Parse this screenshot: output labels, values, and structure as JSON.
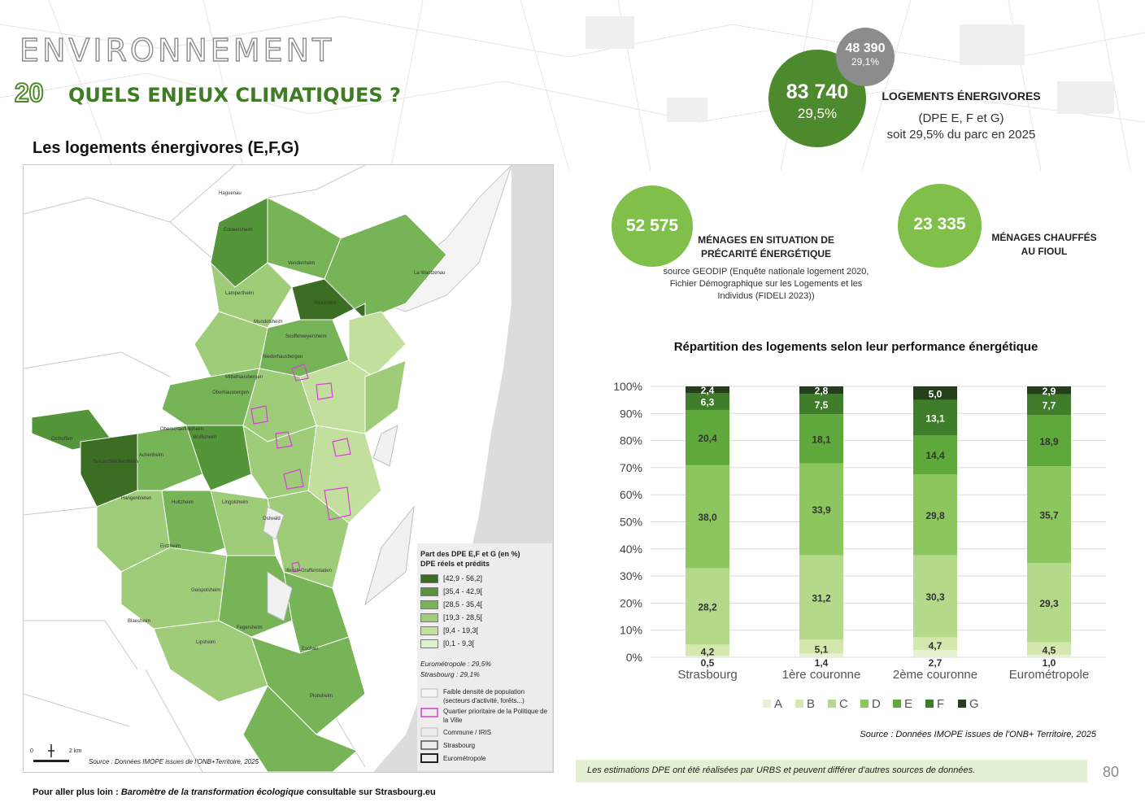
{
  "header": {
    "section_title": "ENVIRONNEMENT",
    "number": "20",
    "subtitle": "QUELS ENJEUX CLIMATIQUES ?"
  },
  "map": {
    "title": "Les logements énergivores (E,F,G)",
    "source": "Source : Données IMOPE issues de l'ONB+Territoire, 2025",
    "scale_label": "2 km",
    "scale_zero": "0",
    "legend": {
      "title": "Part des DPE E,F et G (en %)",
      "subtitle": "DPE réels et prédits",
      "classes": [
        {
          "label": "[42,9 - 56,2]",
          "color": "#3b6e22"
        },
        {
          "label": "[35,4 - 42,9[",
          "color": "#55953a"
        },
        {
          "label": "[28,5 - 35,4[",
          "color": "#76b457"
        },
        {
          "label": "[19,3 - 28,5[",
          "color": "#9fcc79"
        },
        {
          "label": "[9,4 - 19,3[",
          "color": "#c3df9e"
        },
        {
          "label": "[0,1 - 9,3[",
          "color": "#e3f0cc"
        }
      ],
      "eurometropole": "Eurométropole : 29,5%",
      "strasbourg": "Strasbourg : 29,1%",
      "items": [
        {
          "label": "Faible densité de population (secteurs d'activité, forêts...)"
        },
        {
          "label": "Quartier prioritaire de la Politique de la Ville"
        },
        {
          "label": "Commune / IRIS"
        },
        {
          "label": "Strasbourg"
        },
        {
          "label": "Eurométropole"
        }
      ]
    },
    "place_labels": [
      "Haguenau",
      "Eckwersheim",
      "Vendenheim",
      "La Wantzenau",
      "Lampertheim",
      "Reichstett",
      "Mundolsheim",
      "Souffelweyersheim",
      "Niederhausbergen",
      "Mittelhausbergen",
      "Oberhausbergen",
      "Oberschaeffolsheim",
      "Wolfisheim",
      "Ostwald",
      "Holtzheim",
      "Entzheim",
      "Geispolsheim",
      "Illkirch-Graffenstaden",
      "Blaesheim",
      "Lipsheim",
      "Fegersheim",
      "Eschau",
      "Plobsheim",
      "Hangenbieten",
      "Achenheim",
      "Breuschwickersheim",
      "Osthoffen",
      "Lingolsheim"
    ]
  },
  "kpis": {
    "main_value": "83 740",
    "main_pct": "29,5%",
    "secondary_value": "48 390",
    "secondary_pct": "29,1%",
    "main_label": "LOGEMENTS ÉNERGIVORES",
    "main_sub1": "(DPE E, F et G)",
    "main_sub2": "soit 29,5% du parc en 2025",
    "precarite_value": "52 575",
    "precarite_label": "MÉNAGES EN SITUATION DE PRÉCARITÉ ÉNERGÉTIQUE",
    "precarite_source": "source GEODIP (Enquête nationale logement 2020, Fichier Démographique sur les Logements et les Individus (FIDELI 2023))",
    "fioul_value": "23 335",
    "fioul_label": "MÉNAGES CHAUFFÉS AU FIOUL"
  },
  "chart_data": {
    "type": "bar",
    "stacked": true,
    "title": "Répartition des logements selon leur performance énergétique",
    "categories": [
      "Strasbourg",
      "1ère couronne",
      "2ème couronne",
      "Eurométropole"
    ],
    "series": [
      {
        "name": "A",
        "color": "#e6f2d4",
        "values": [
          0.5,
          1.4,
          2.7,
          1.0
        ]
      },
      {
        "name": "B",
        "color": "#d4e8ad",
        "values": [
          4.2,
          5.1,
          4.7,
          4.5
        ]
      },
      {
        "name": "C",
        "color": "#b5d98a",
        "values": [
          28.2,
          31.2,
          30.3,
          29.3
        ]
      },
      {
        "name": "D",
        "color": "#8cc65f",
        "values": [
          38.0,
          33.9,
          29.8,
          35.7
        ]
      },
      {
        "name": "E",
        "color": "#5fa83b",
        "values": [
          20.4,
          18.1,
          14.4,
          18.9
        ]
      },
      {
        "name": "F",
        "color": "#3f7d2a",
        "values": [
          6.3,
          7.5,
          13.1,
          7.7
        ]
      },
      {
        "name": "G",
        "color": "#23401b",
        "values": [
          2.4,
          2.8,
          5.0,
          2.9
        ]
      }
    ],
    "data_labels": {
      "A": [
        "0,5",
        "1,4",
        "2,7",
        "1,0"
      ],
      "B": [
        "4,2",
        "5,1",
        "4,7",
        "4,5"
      ],
      "C": [
        "28,2",
        "31,2",
        "30,3",
        "29,3"
      ],
      "D": [
        "38,0",
        "33,9",
        "29,8",
        "35,7"
      ],
      "E": [
        "20,4",
        "18,1",
        "14,4",
        "18,9"
      ],
      "F": [
        "6,3",
        "7,5",
        "13,1",
        "7,7"
      ],
      "G": [
        "2,4",
        "2,8",
        "5,0",
        "2,9"
      ]
    },
    "ylim": [
      0,
      100
    ],
    "yticks": [
      "0%",
      "10%",
      "20%",
      "30%",
      "40%",
      "50%",
      "60%",
      "70%",
      "80%",
      "90%",
      "100%"
    ],
    "grid": true,
    "legend_position": "bottom"
  },
  "footer": {
    "source": "Source : Données IMOPE issues de l'ONB+ Territoire, 2025",
    "disclaimer": "Les estimations DPE ont été réalisées par URBS et peuvent différer d'autres sources de données.",
    "page": "80",
    "further_prefix": "Pour aller plus loin :",
    "further_title": "Baromètre de la transformation écologique",
    "further_suffix": "consultable sur Strasbourg.eu"
  },
  "colors": {
    "brand_dark": "#3f7c25",
    "circle_dark": "#4d8a2d",
    "circle_light": "#7fbf4a",
    "circle_grey": "#8c8c8c",
    "footer_bg": "#e3f0d3"
  }
}
